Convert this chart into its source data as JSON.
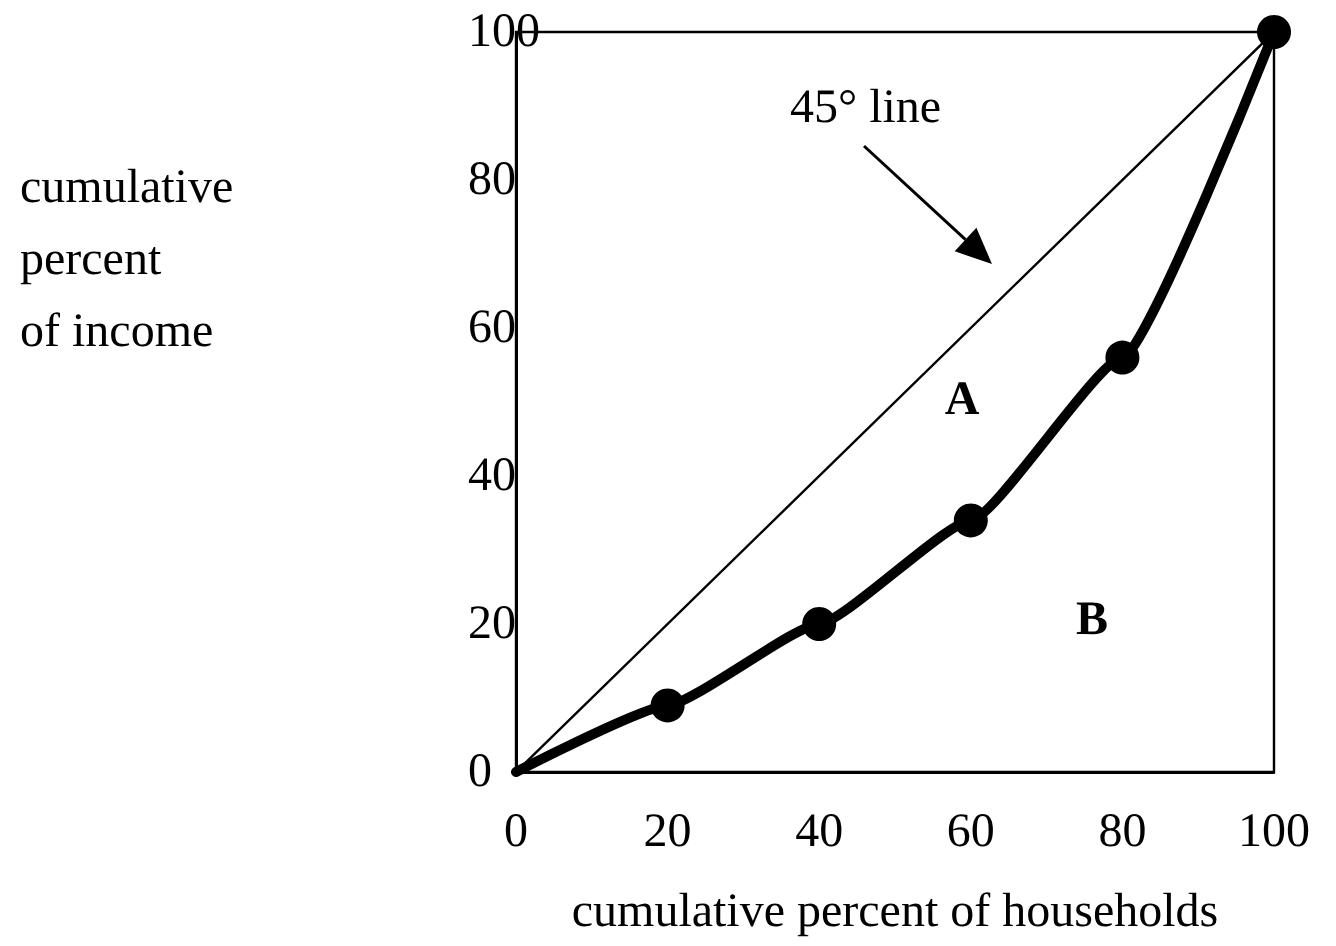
{
  "chart_data": {
    "type": "line",
    "xlabel": "cumulative percent of households",
    "ylabel": "cumulative percent of income",
    "xlim": [
      0,
      100
    ],
    "xticks": [
      0,
      20,
      40,
      60,
      80,
      100
    ],
    "ylim": [
      0,
      100
    ],
    "yticks": [
      0,
      20,
      40,
      60,
      80,
      100
    ],
    "grid": false,
    "series": [
      {
        "x": [
          0,
          100
        ],
        "values": [
          0,
          100
        ],
        "color": "#000000"
      },
      {
        "x": [
          0,
          20,
          40,
          60,
          80,
          100
        ],
        "values": [
          0,
          9,
          20,
          34,
          56,
          100
        ],
        "color": "#000000",
        "marker": "circle"
      }
    ],
    "annotations": [
      "45° line",
      "A",
      "B"
    ]
  }
}
